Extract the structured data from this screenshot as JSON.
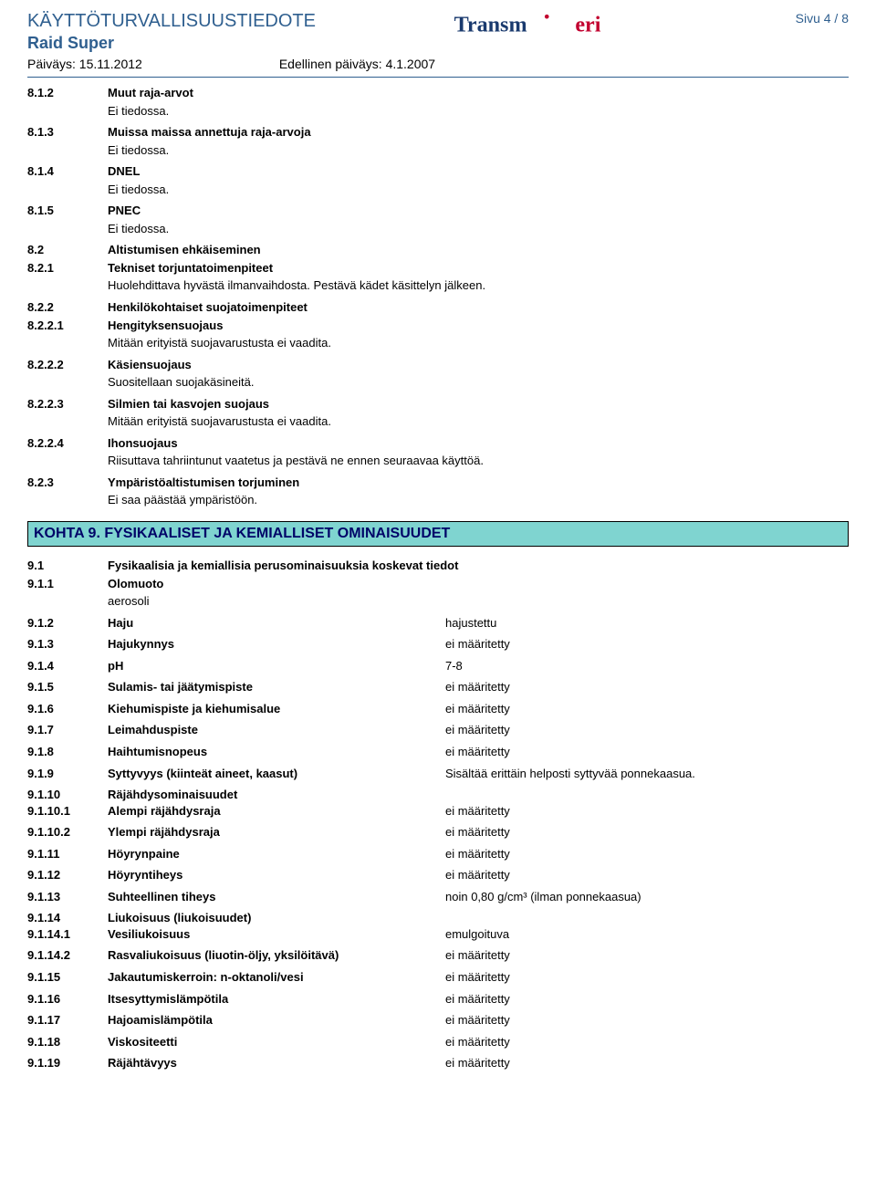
{
  "header": {
    "doc_title": "KÄYTTÖTURVALLISUUSTIEDOTE",
    "product_name": "Raid Super",
    "date_label": "Päiväys: 15.11.2012",
    "prev_date_label": "Edellinen päiväys: 4.1.2007",
    "page_label": "Sivu 4 / 8"
  },
  "s8": [
    {
      "num": "8.1.2",
      "label": "Muut raja-arvot",
      "body": "Ei tiedossa."
    },
    {
      "num": "8.1.3",
      "label": "Muissa maissa annettuja raja-arvoja",
      "body": "Ei tiedossa."
    },
    {
      "num": "8.1.4",
      "label": "DNEL",
      "body": "Ei tiedossa."
    },
    {
      "num": "8.1.5",
      "label": "PNEC",
      "body": "Ei tiedossa."
    },
    {
      "num": "8.2",
      "label": "Altistumisen ehkäiseminen",
      "body": null
    },
    {
      "num": "8.2.1",
      "label": "Tekniset torjuntatoimenpiteet",
      "body": "Huolehdittava hyvästä ilmanvaihdosta. Pestävä kädet käsittelyn jälkeen."
    },
    {
      "num": "8.2.2",
      "label": "Henkilökohtaiset suojatoimenpiteet",
      "body": null
    },
    {
      "num": "8.2.2.1",
      "label": "Hengityksensuojaus",
      "body": "Mitään erityistä suojavarustusta ei vaadita."
    },
    {
      "num": "8.2.2.2",
      "label": "Käsiensuojaus",
      "body": "Suositellaan suojakäsineitä."
    },
    {
      "num": "8.2.2.3",
      "label": "Silmien tai kasvojen suojaus",
      "body": "Mitään erityistä suojavarustusta ei vaadita."
    },
    {
      "num": "8.2.2.4",
      "label": "Ihonsuojaus",
      "body": "Riisuttava tahriintunut vaatetus ja pestävä ne ennen seuraavaa käyttöä."
    },
    {
      "num": "8.2.3",
      "label": "Ympäristöaltistumisen torjuminen",
      "body": "Ei saa päästää ympäristöön."
    }
  ],
  "section9_title": "KOHTA 9. FYSIKAALISET JA KEMIALLISET OMINAISUUDET",
  "s9_top": [
    {
      "num": "9.1",
      "label": "Fysikaalisia ja kemiallisia perusominaisuuksia koskevat tiedot",
      "body": null
    },
    {
      "num": "9.1.1",
      "label": "Olomuoto",
      "body": "aerosoli"
    }
  ],
  "s9": [
    {
      "num": "9.1.2",
      "label": "Haju",
      "value": "hajustettu"
    },
    {
      "num": "9.1.3",
      "label": "Hajukynnys",
      "value": "ei määritetty"
    },
    {
      "num": "9.1.4",
      "label": "pH",
      "value": "7-8"
    },
    {
      "num": "9.1.5",
      "label": "Sulamis- tai jäätymispiste",
      "value": "ei määritetty"
    },
    {
      "num": "9.1.6",
      "label": "Kiehumispiste ja kiehumisalue",
      "value": "ei määritetty"
    },
    {
      "num": "9.1.7",
      "label": "Leimahduspiste",
      "value": "ei määritetty"
    },
    {
      "num": "9.1.8",
      "label": "Haihtumisnopeus",
      "value": "ei määritetty"
    },
    {
      "num": "9.1.9",
      "label": "Syttyvyys (kiinteät aineet, kaasut)",
      "value": "Sisältää erittäin helposti syttyvää ponnekaasua."
    },
    {
      "num": "9.1.10",
      "label": "Räjähdysominaisuudet",
      "value": ""
    },
    {
      "num": "9.1.10.1",
      "label": "Alempi räjähdysraja",
      "value": "ei määritetty"
    },
    {
      "num": "9.1.10.2",
      "label": "Ylempi räjähdysraja",
      "value": "ei määritetty"
    },
    {
      "num": "9.1.11",
      "label": "Höyrynpaine",
      "value": "ei määritetty"
    },
    {
      "num": "9.1.12",
      "label": "Höyryntiheys",
      "value": "ei määritetty"
    },
    {
      "num": "9.1.13",
      "label": "Suhteellinen tiheys",
      "value": "noin 0,80 g/cm³ (ilman ponnekaasua)"
    },
    {
      "num": "9.1.14",
      "label": "Liukoisuus (liukoisuudet)",
      "value": ""
    },
    {
      "num": "9.1.14.1",
      "label": "Vesiliukoisuus",
      "value": "emulgoituva"
    },
    {
      "num": "9.1.14.2",
      "label": "Rasvaliukoisuus (liuotin-öljy, yksilöitävä)",
      "value": "ei määritetty"
    },
    {
      "num": "9.1.15",
      "label": "Jakautumiskerroin: n-oktanoli/vesi",
      "value": "ei määritetty"
    },
    {
      "num": "9.1.16",
      "label": "Itsesyttymislämpötila",
      "value": "ei määritetty"
    },
    {
      "num": "9.1.17",
      "label": "Hajoamislämpötila",
      "value": "ei määritetty"
    },
    {
      "num": "9.1.18",
      "label": "Viskositeetti",
      "value": "ei määritetty"
    },
    {
      "num": "9.1.19",
      "label": "Räjähtävyys",
      "value": "ei määritetty"
    }
  ]
}
